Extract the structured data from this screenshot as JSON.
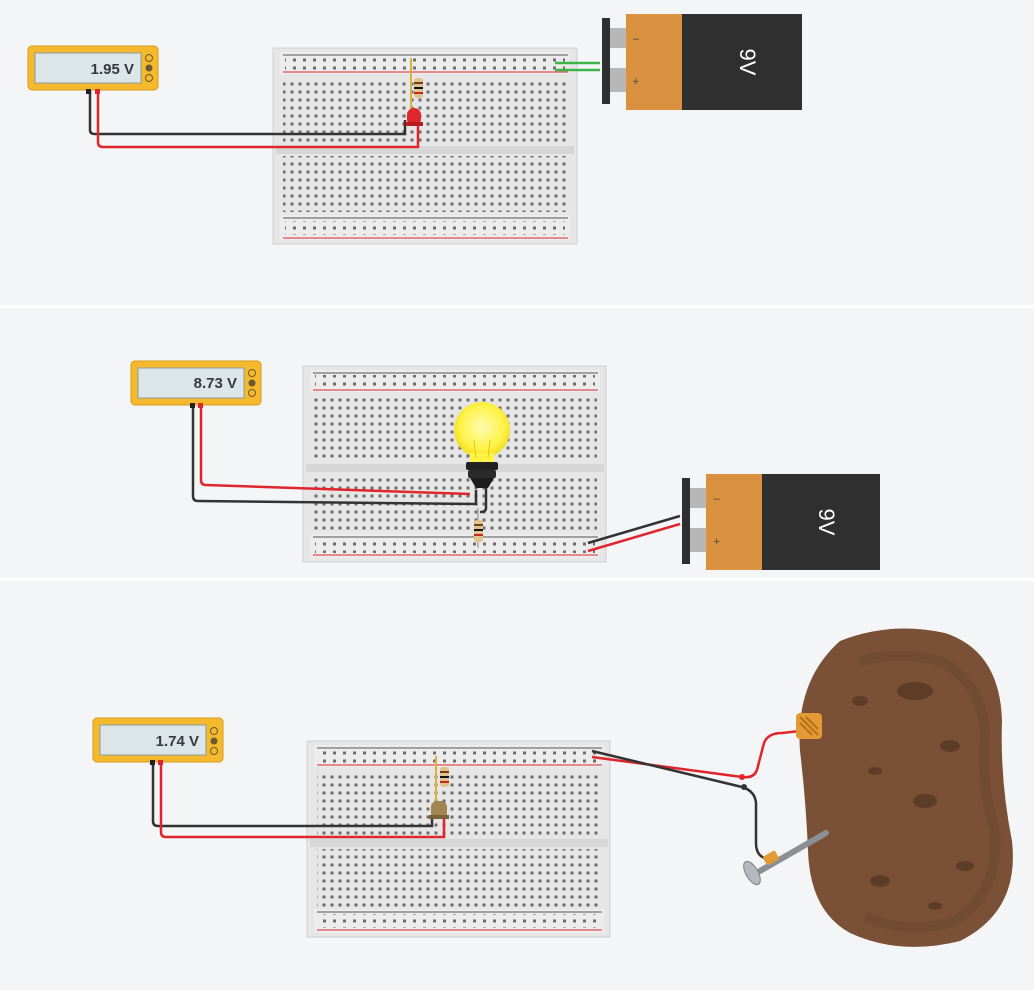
{
  "circuits": [
    {
      "id": "led",
      "meter_reading": "1.95 V",
      "battery_label": "9V",
      "load": "led-icon"
    },
    {
      "id": "bulb",
      "meter_reading": "8.73 V",
      "battery_label": "9V",
      "load": "light-bulb-icon"
    },
    {
      "id": "potato",
      "meter_reading": "1.74 V",
      "load": "buzzer-icon",
      "source": "potato-icon"
    }
  ],
  "battery_terminals": {
    "neg": "−",
    "pos": "+"
  },
  "colors": {
    "background": "#f4f5f7",
    "meter_body": "#f5b92e",
    "meter_screen": "#dce6e8",
    "breadboard": "#e8e8e8",
    "battery_body": "#2f2f2f",
    "battery_cap": "#d9913f",
    "wire_red": "#e0262c",
    "wire_black": "#333333",
    "wire_green": "#3bb54a",
    "bulb_glass": "#fff34a",
    "potato": "#7a5136"
  }
}
